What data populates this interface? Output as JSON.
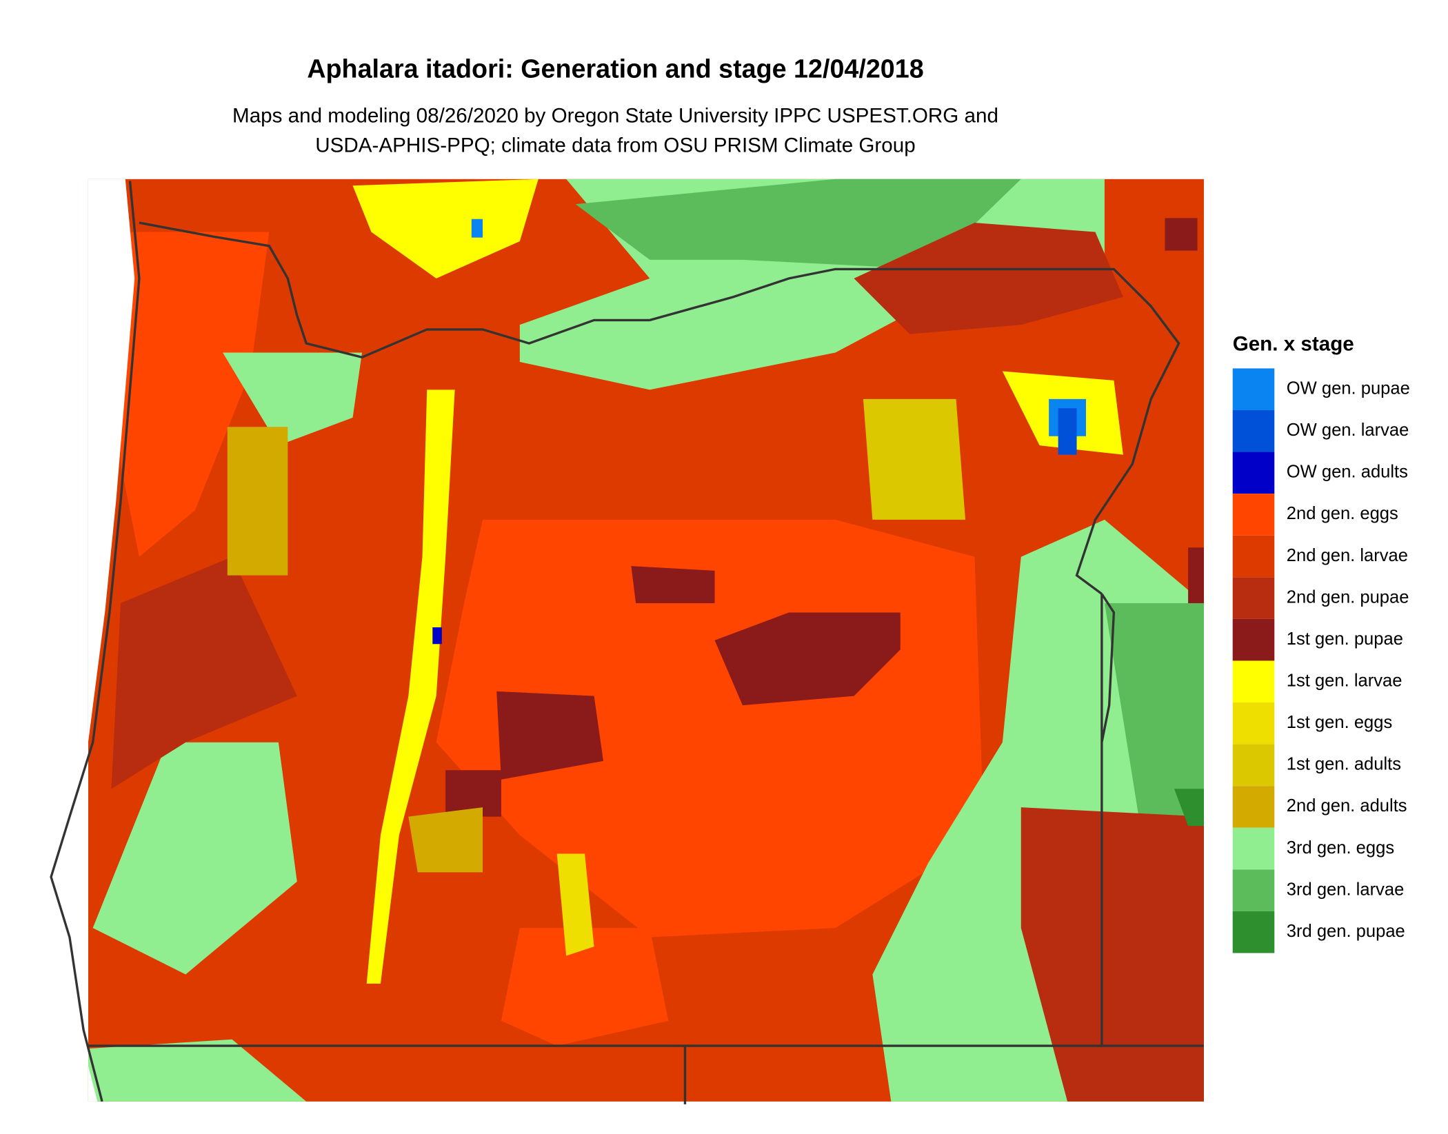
{
  "title": "Aphalara itadori: Generation and stage 12/04/2018",
  "subtitle": [
    "Maps and modeling 08/26/2020 by Oregon State University IPPC USPEST.ORG and",
    "USDA-APHIS-PPQ; climate data from OSU PRISM Climate Group"
  ],
  "legend": {
    "title": "Gen. x stage",
    "items": [
      {
        "label": "OW gen. pupae",
        "color": "#0a84f0"
      },
      {
        "label": "OW gen. larvae",
        "color": "#0050d8"
      },
      {
        "label": "OW gen. adults",
        "color": "#0000c8"
      },
      {
        "label": "2nd gen. eggs",
        "color": "#ff4500"
      },
      {
        "label": "2nd gen. larvae",
        "color": "#dd3a00"
      },
      {
        "label": "2nd gen. pupae",
        "color": "#b82c10"
      },
      {
        "label": "1st gen. pupae",
        "color": "#8b1a1a"
      },
      {
        "label": "1st gen. larvae",
        "color": "#ffff00"
      },
      {
        "label": "1st gen. eggs",
        "color": "#efdf00"
      },
      {
        "label": "1st gen. adults",
        "color": "#dcc800"
      },
      {
        "label": "2nd gen. adults",
        "color": "#d2aa00"
      },
      {
        "label": "3rd gen. eggs",
        "color": "#90ee90"
      },
      {
        "label": "3rd gen. larvae",
        "color": "#5cbc5c"
      },
      {
        "label": "3rd gen. pupae",
        "color": "#2e8f2e"
      }
    ]
  }
}
